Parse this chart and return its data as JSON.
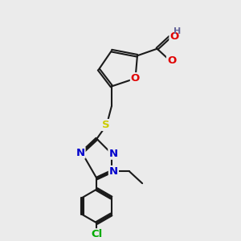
{
  "bg_color": "#ebebeb",
  "bond_color": "#1a1a1a",
  "bond_width": 1.5,
  "atom_colors": {
    "O": "#e00000",
    "N": "#0000cc",
    "S": "#cccc00",
    "Cl": "#00aa00",
    "H": "#666699",
    "C": "#1a1a1a"
  },
  "font_size": 8.5,
  "fig_size": [
    3.0,
    3.0
  ],
  "dpi": 100
}
